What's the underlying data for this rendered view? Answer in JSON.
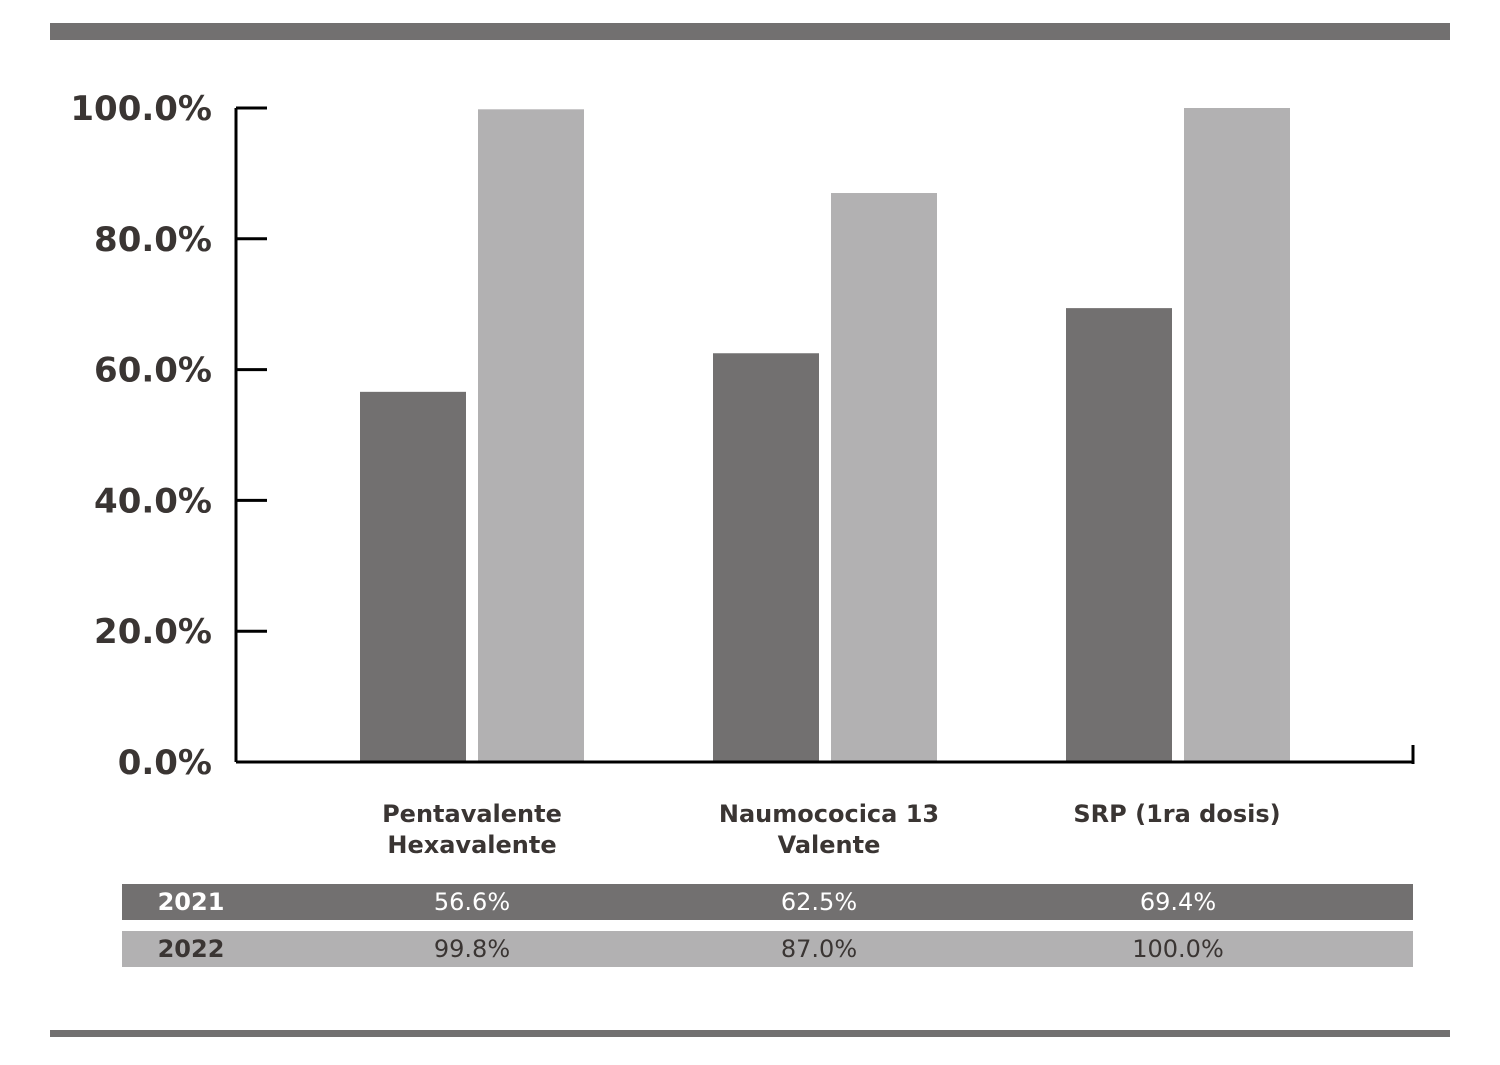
{
  "colors": {
    "series_2021": "#727070",
    "series_2022": "#b2b1b2",
    "text_dark": "#3a3533",
    "rule": "#727070",
    "axis": "#000000",
    "table_text_2021": "#ffffff",
    "table_text_2022": "#3a3533"
  },
  "chart_data": {
    "type": "bar",
    "categories": [
      "Pentavalente Hexavalente",
      "Naumococica 13 Valente",
      "SRP (1ra dosis)"
    ],
    "category_lines": [
      [
        "Pentavalente",
        "Hexavalente"
      ],
      [
        "Naumococica 13",
        "Valente"
      ],
      [
        "SRP (1ra dosis)"
      ]
    ],
    "series": [
      {
        "name": "2021",
        "values": [
          56.6,
          62.5,
          69.4
        ],
        "labels": [
          "56.6%",
          "62.5%",
          "69.4%"
        ]
      },
      {
        "name": "2022",
        "values": [
          99.8,
          87.0,
          100.0
        ],
        "labels": [
          "99.8%",
          "87.0%",
          "100.0%"
        ]
      }
    ],
    "ylim": [
      0,
      100
    ],
    "yticks": [
      "0.0%",
      "20.0%",
      "40.0%",
      "60.0%",
      "80.0%",
      "100.0%"
    ],
    "grid": false,
    "legend": "data table below chart"
  },
  "table": {
    "rows": [
      {
        "year": "2021",
        "cells": [
          "56.6%",
          "62.5%",
          "69.4%"
        ]
      },
      {
        "year": "2022",
        "cells": [
          "99.8%",
          "87.0%",
          "100.0%"
        ]
      }
    ]
  }
}
